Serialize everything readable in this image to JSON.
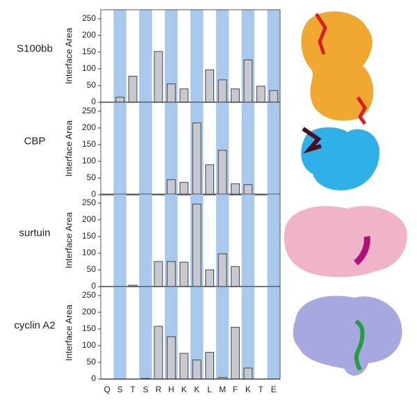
{
  "chart_data": [
    {
      "type": "bar",
      "title": "S100bb",
      "ylabel": "Interface Area",
      "categories": [
        "Q",
        "S",
        "T",
        "S",
        "R",
        "H",
        "K",
        "K",
        "L",
        "M",
        "F",
        "K",
        "T",
        "E"
      ],
      "values": [
        0,
        15,
        78,
        0,
        152,
        55,
        40,
        0,
        97,
        67,
        40,
        127,
        48,
        35
      ],
      "color": "#c8c8d0",
      "stripe_color": "#a8c8ee",
      "ylim": [
        0,
        277
      ],
      "yticks": [
        0,
        50,
        100,
        150,
        200,
        250
      ]
    },
    {
      "type": "bar",
      "title": "CBP",
      "ylabel": "Interface Area",
      "categories": [
        "Q",
        "S",
        "T",
        "S",
        "R",
        "H",
        "K",
        "K",
        "L",
        "M",
        "F",
        "K",
        "T",
        "E"
      ],
      "values": [
        0,
        0,
        0,
        0,
        0,
        45,
        37,
        215,
        90,
        133,
        33,
        30,
        0,
        0
      ],
      "color": "#c8c8d0",
      "stripe_color": "#a8c8ee",
      "ylim": [
        0,
        277
      ],
      "yticks": [
        0,
        50,
        100,
        150,
        200,
        250
      ]
    },
    {
      "type": "bar",
      "title": "surtuin",
      "ylabel": "Interface Area",
      "categories": [
        "Q",
        "S",
        "T",
        "S",
        "R",
        "H",
        "K",
        "K",
        "L",
        "M",
        "F",
        "K",
        "T",
        "E"
      ],
      "values": [
        0,
        0,
        4,
        0,
        75,
        75,
        73,
        247,
        50,
        98,
        60,
        0,
        0,
        0
      ],
      "color": "#c8c8d0",
      "stripe_color": "#a8c8ee",
      "ylim": [
        0,
        277
      ],
      "yticks": [
        0,
        50,
        100,
        150,
        200,
        250
      ]
    },
    {
      "type": "bar",
      "title": "cyclin A2",
      "ylabel": "Interface Area",
      "categories": [
        "Q",
        "S",
        "T",
        "S",
        "R",
        "H",
        "K",
        "K",
        "L",
        "M",
        "F",
        "K",
        "T",
        "E"
      ],
      "values": [
        0,
        0,
        0,
        2,
        158,
        127,
        77,
        57,
        80,
        5,
        155,
        33,
        0,
        0
      ],
      "color": "#c8c8d0",
      "stripe_color": "#a8c8ee",
      "ylim": [
        0,
        277
      ],
      "yticks": [
        0,
        50,
        100,
        150,
        200,
        250
      ]
    }
  ]
}
